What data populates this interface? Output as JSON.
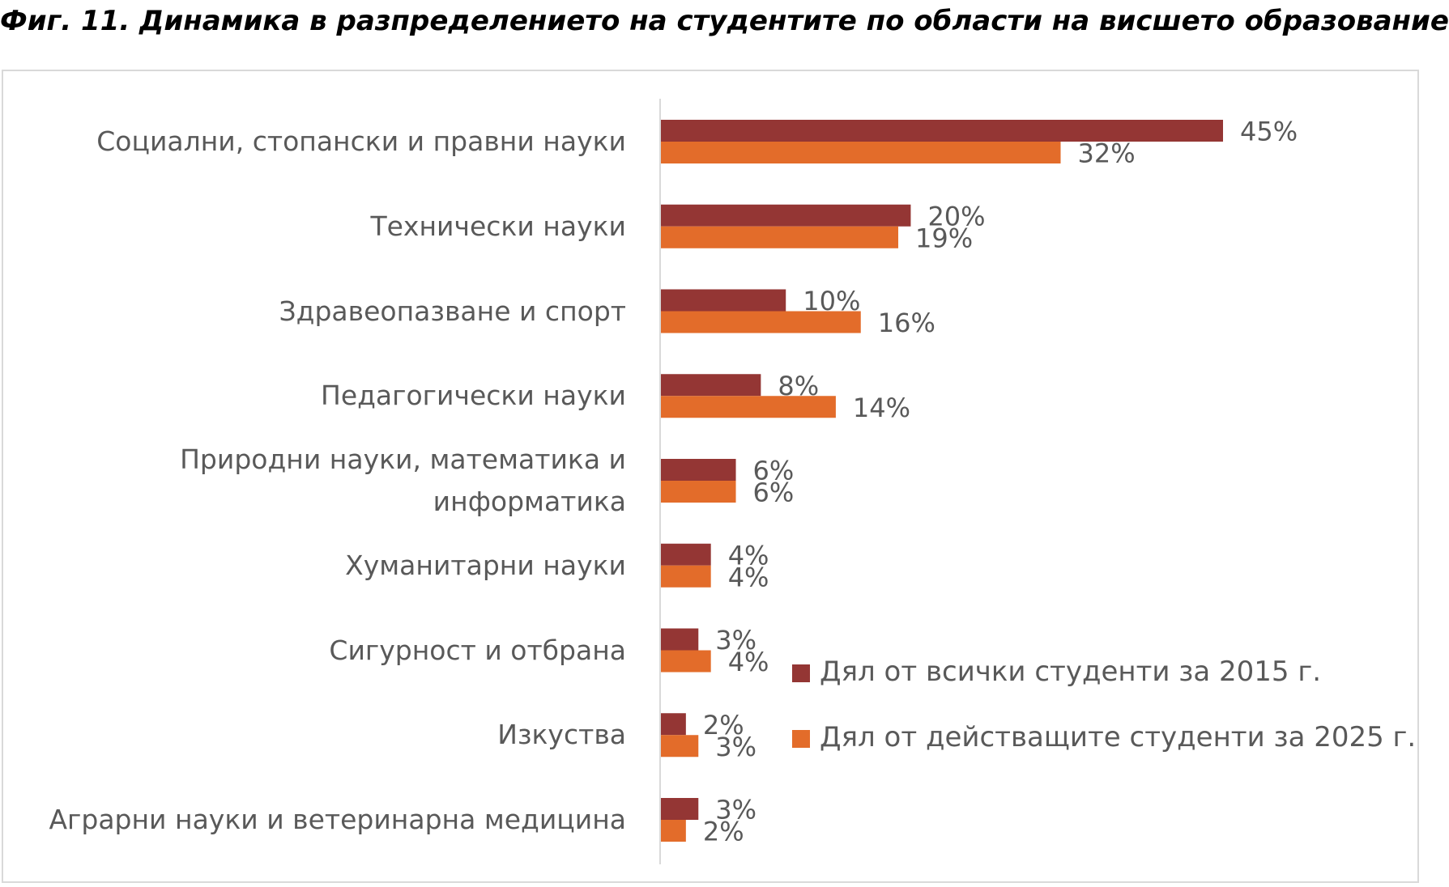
{
  "page": {
    "title": "Фиг. 11. Динамика в разпределението на студентите по области на висшето образование"
  },
  "colors": {
    "series_2015": "#943634",
    "series_2025": "#e36c2a",
    "axis": "#d9d9d9",
    "text": "#595959"
  },
  "chart_data": {
    "type": "bar",
    "orientation": "horizontal",
    "title": "",
    "xlabel": "",
    "ylabel": "",
    "xlim": [
      0,
      45
    ],
    "grid": false,
    "legend_position": "bottom-right",
    "categories": [
      "Социални, стопански и правни науки",
      "Технически науки",
      "Здравеопазване и спорт",
      "Педагогически науки",
      "Природни науки, математика и информатика",
      "Хуманитарни науки",
      "Сигурност и отбрана",
      "Изкуства",
      "Аграрни науки и ветеринарна медицина"
    ],
    "series": [
      {
        "name": "Дял от всички студенти за 2015 г.",
        "values": [
          45,
          20,
          10,
          8,
          6,
          4,
          3,
          2,
          3
        ],
        "labels": [
          "45%",
          "20%",
          "10%",
          "8%",
          "6%",
          "4%",
          "3%",
          "2%",
          "3%"
        ]
      },
      {
        "name": "Дял от действащите студенти за 2025 г.",
        "values": [
          32,
          19,
          16,
          14,
          6,
          4,
          4,
          3,
          2
        ],
        "labels": [
          "32%",
          "19%",
          "16%",
          "14%",
          "6%",
          "4%",
          "4%",
          "3%",
          "2%"
        ]
      }
    ]
  }
}
